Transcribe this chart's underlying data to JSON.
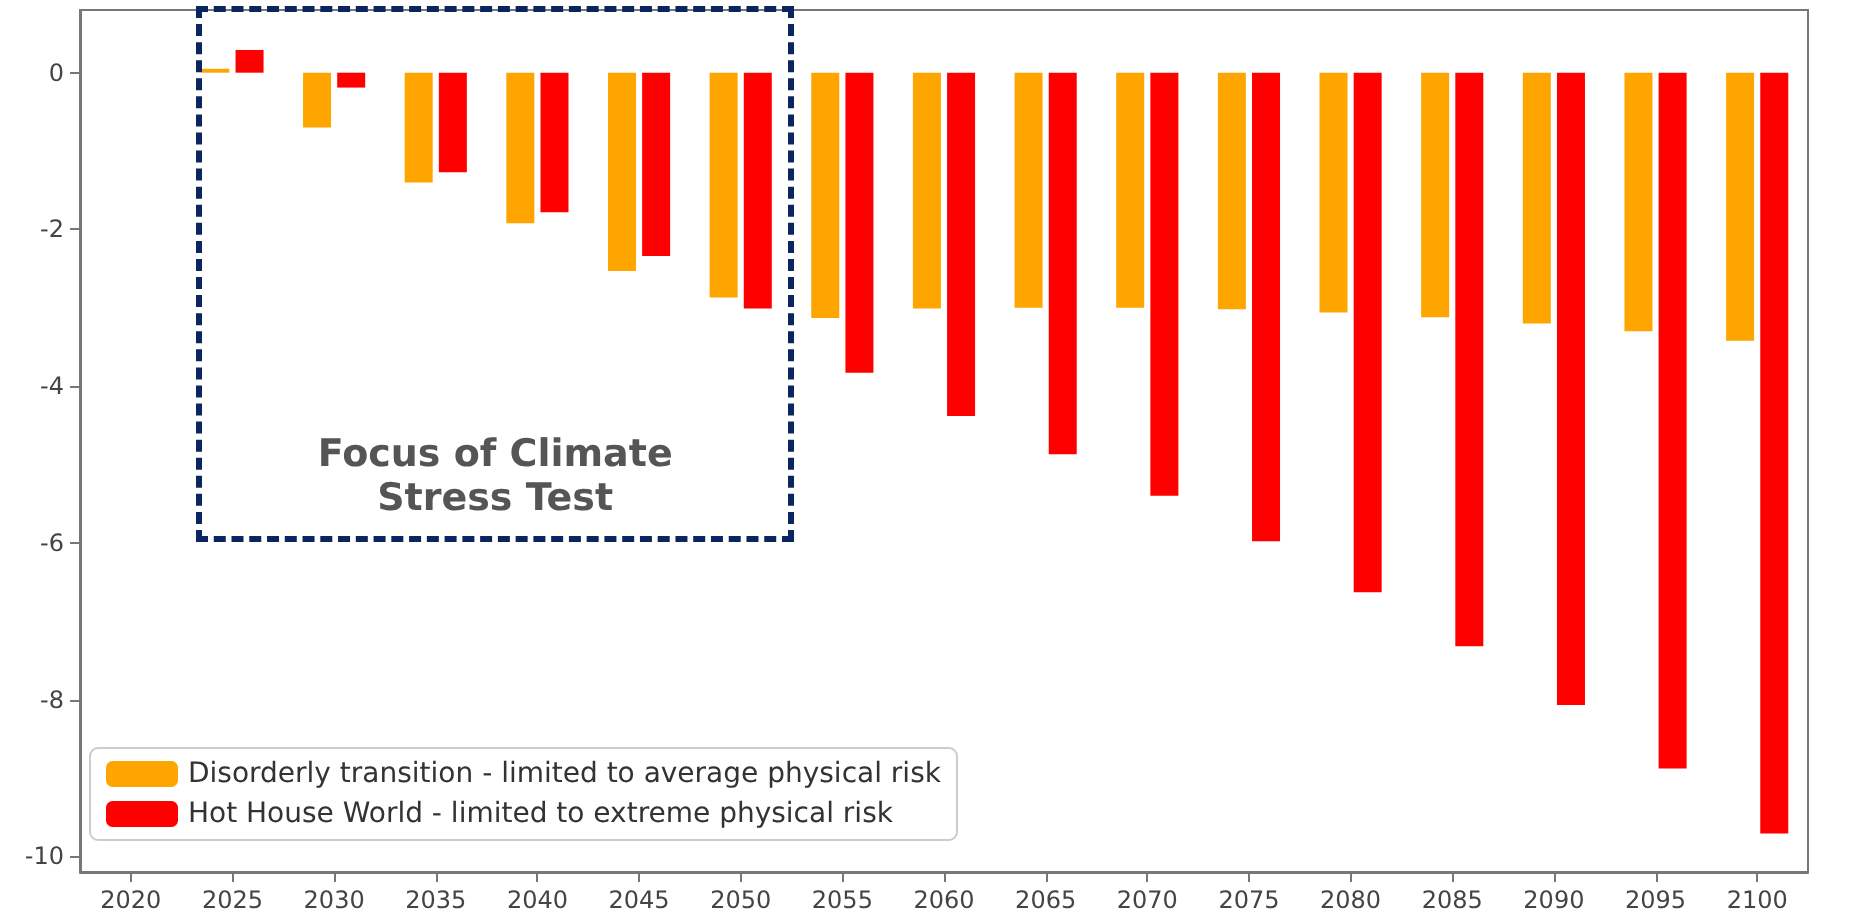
{
  "chart_data": {
    "type": "bar",
    "categories": [
      "2020",
      "2025",
      "2030",
      "2035",
      "2040",
      "2045",
      "2050",
      "2055",
      "2060",
      "2065",
      "2070",
      "2075",
      "2080",
      "2085",
      "2090",
      "2095",
      "2100"
    ],
    "series": [
      {
        "name": "Disorderly transition - limited to average physical risk",
        "color": "#ffa500",
        "values": [
          null,
          0.05,
          -0.7,
          -1.4,
          -1.92,
          -2.53,
          -2.87,
          -3.13,
          -3.01,
          -3.0,
          -3.0,
          -3.02,
          -3.06,
          -3.12,
          -3.2,
          -3.3,
          -3.42
        ]
      },
      {
        "name": "Hot House World - limited to extreme physical risk",
        "color": "#ff0000",
        "values": [
          null,
          0.29,
          -0.19,
          -1.27,
          -1.78,
          -2.34,
          -3.01,
          -3.83,
          -4.38,
          -4.87,
          -5.4,
          -5.98,
          -6.63,
          -7.32,
          -8.07,
          -8.88,
          -9.71
        ]
      }
    ],
    "ylim": [
      -10.2,
      0.8
    ],
    "yticks": [
      0,
      -2,
      -4,
      -6,
      -8,
      -10
    ],
    "annotations": [
      "Focus of Climate Stress Test"
    ],
    "grid": false,
    "legend": "bottom left"
  }
}
